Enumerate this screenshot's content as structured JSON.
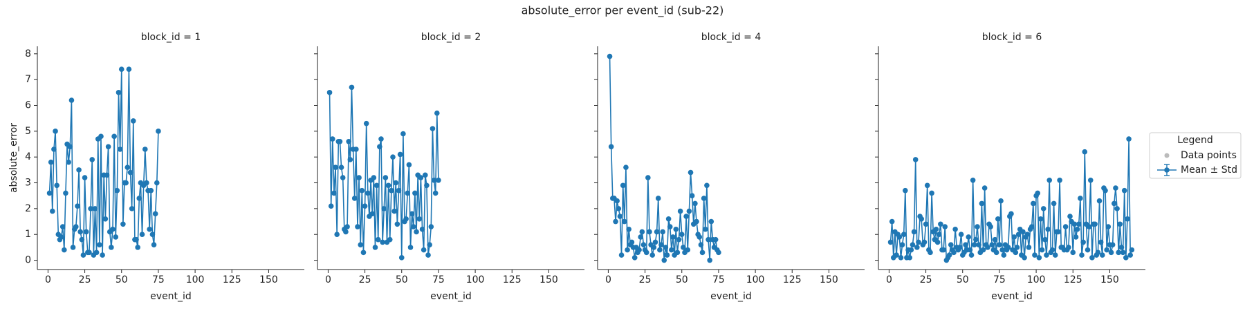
{
  "title": "absolute_error per event_id (sub-22)",
  "legend": {
    "title": "Legend",
    "position": "right",
    "entries": [
      {
        "name": "Data points",
        "color": "#bbbbbb",
        "marker": "dot"
      },
      {
        "name": "Mean ± Std",
        "color": "#1f77b4",
        "marker": "errorbar"
      }
    ]
  },
  "chart_data": [
    {
      "type": "line",
      "title": "block_id = 1",
      "x_label": "event_id",
      "y_label": "absolute_error",
      "xlim": [
        -7.25,
        174.25
      ],
      "ylim": [
        -0.36,
        8.29
      ],
      "xticks": [
        0,
        25,
        50,
        75,
        100,
        125,
        150
      ],
      "yticks": [
        0,
        1,
        2,
        3,
        4,
        5,
        6,
        7,
        8
      ],
      "x": [
        1,
        2,
        3,
        4,
        5,
        6,
        7,
        8,
        9,
        10,
        11,
        12,
        13,
        14,
        15,
        16,
        17,
        18,
        19,
        20,
        21,
        22,
        23,
        24,
        25,
        26,
        27,
        28,
        29,
        30,
        31,
        32,
        33,
        34,
        35,
        36,
        37,
        38,
        39,
        40,
        41,
        42,
        43,
        44,
        45,
        46,
        47,
        48,
        49,
        50,
        51,
        52,
        53,
        54,
        55,
        56,
        57,
        58,
        59,
        60,
        61,
        62,
        63,
        64,
        65,
        66,
        67,
        68,
        69,
        70,
        71,
        72,
        73,
        74,
        75
      ],
      "series": [
        {
          "color": "#1f77b4",
          "values": [
            2.6,
            3.8,
            1.9,
            4.3,
            5.0,
            2.9,
            1.0,
            0.8,
            0.9,
            1.3,
            0.4,
            2.6,
            4.5,
            3.8,
            4.4,
            6.2,
            0.5,
            1.2,
            1.3,
            2.1,
            3.5,
            1.1,
            0.8,
            0.2,
            3.2,
            1.1,
            0.3,
            0.3,
            2.0,
            3.9,
            0.2,
            2.0,
            0.3,
            4.7,
            0.6,
            4.8,
            0.2,
            3.3,
            1.6,
            3.3,
            4.4,
            1.1,
            0.5,
            1.2,
            4.8,
            0.9,
            2.7,
            6.5,
            4.3,
            7.4,
            1.4,
            3.0,
            3.0,
            3.6,
            7.4,
            3.4,
            2.0,
            5.4,
            0.8,
            0.8,
            0.5,
            2.4,
            3.0,
            1.0,
            2.9,
            4.3,
            3.0,
            2.7,
            1.2,
            2.7,
            1.0,
            0.6,
            1.8,
            3.0,
            5.0
          ]
        }
      ]
    },
    {
      "type": "line",
      "title": "block_id = 2",
      "x_label": "event_id",
      "xlim": [
        -7.25,
        174.25
      ],
      "ylim": [
        -0.36,
        8.29
      ],
      "xticks": [
        0,
        25,
        50,
        75,
        100,
        125,
        150
      ],
      "yticks": [
        0,
        1,
        2,
        3,
        4,
        5,
        6,
        7,
        8
      ],
      "x": [
        1,
        2,
        3,
        4,
        5,
        6,
        7,
        8,
        9,
        10,
        11,
        12,
        13,
        14,
        15,
        16,
        17,
        18,
        19,
        20,
        21,
        22,
        23,
        24,
        25,
        26,
        27,
        28,
        29,
        30,
        31,
        32,
        33,
        34,
        35,
        36,
        37,
        38,
        39,
        40,
        41,
        42,
        43,
        44,
        45,
        46,
        47,
        48,
        49,
        50,
        51,
        52,
        53,
        54,
        55,
        56,
        57,
        58,
        59,
        60,
        61,
        62,
        63,
        64,
        65,
        66,
        67,
        68,
        69,
        70,
        71,
        72,
        73,
        74,
        75
      ],
      "series": [
        {
          "color": "#1f77b4",
          "values": [
            6.5,
            2.1,
            4.7,
            2.6,
            3.6,
            1.0,
            4.6,
            4.6,
            3.6,
            3.2,
            1.2,
            1.1,
            1.3,
            4.6,
            3.9,
            6.7,
            4.3,
            2.4,
            4.3,
            1.3,
            3.2,
            0.6,
            2.7,
            0.3,
            2.1,
            5.3,
            2.6,
            1.7,
            3.1,
            1.8,
            3.2,
            0.5,
            2.9,
            0.8,
            4.4,
            4.7,
            0.7,
            2.0,
            3.2,
            0.7,
            2.9,
            0.8,
            2.7,
            4.0,
            1.9,
            3.0,
            1.4,
            2.7,
            4.1,
            0.1,
            4.9,
            1.5,
            1.6,
            2.6,
            3.7,
            0.5,
            1.8,
            1.3,
            2.6,
            1.1,
            3.3,
            1.6,
            3.2,
            1.2,
            0.4,
            3.3,
            2.9,
            0.2,
            0.6,
            1.3,
            5.1,
            3.1,
            2.6,
            5.7,
            3.1
          ]
        }
      ]
    },
    {
      "type": "line",
      "title": "block_id = 4",
      "x_label": "event_id",
      "xlim": [
        -7.25,
        174.25
      ],
      "ylim": [
        -0.36,
        8.29
      ],
      "xticks": [
        0,
        25,
        50,
        75,
        100,
        125,
        150
      ],
      "yticks": [
        0,
        1,
        2,
        3,
        4,
        5,
        6,
        7,
        8
      ],
      "x": [
        1,
        2,
        3,
        4,
        5,
        6,
        7,
        8,
        9,
        10,
        11,
        12,
        13,
        14,
        15,
        16,
        17,
        18,
        19,
        20,
        21,
        22,
        23,
        24,
        25,
        26,
        27,
        28,
        29,
        30,
        31,
        32,
        33,
        34,
        35,
        36,
        37,
        38,
        39,
        40,
        41,
        42,
        43,
        44,
        45,
        46,
        47,
        48,
        49,
        50,
        51,
        52,
        53,
        54,
        55,
        56,
        57,
        58,
        59,
        60,
        61,
        62,
        63,
        64,
        65,
        66,
        67,
        68,
        69,
        70,
        71,
        72,
        73,
        74,
        75
      ],
      "series": [
        {
          "color": "#1f77b4",
          "values": [
            7.9,
            4.4,
            2.4,
            2.4,
            1.5,
            2.3,
            2.0,
            1.7,
            0.2,
            2.9,
            1.5,
            3.6,
            0.4,
            1.2,
            0.6,
            0.7,
            0.5,
            0.1,
            0.5,
            0.3,
            0.4,
            0.9,
            1.1,
            0.6,
            0.4,
            0.3,
            3.2,
            1.1,
            0.6,
            0.2,
            0.5,
            0.7,
            1.1,
            2.4,
            0.4,
            0.6,
            1.1,
            0.0,
            0.5,
            0.2,
            1.6,
            1.3,
            0.4,
            0.9,
            0.2,
            1.2,
            0.3,
            0.8,
            1.9,
            1.0,
            0.5,
            0.3,
            1.7,
            0.4,
            1.9,
            3.4,
            2.5,
            1.4,
            2.2,
            1.5,
            1.0,
            0.9,
            0.6,
            0.3,
            2.4,
            1.2,
            2.9,
            0.8,
            0.0,
            1.5,
            0.8,
            0.5,
            0.8,
            0.4,
            0.3
          ]
        }
      ]
    },
    {
      "type": "line",
      "title": "block_id = 6",
      "x_label": "event_id",
      "xlim": [
        -7.25,
        174.25
      ],
      "ylim": [
        -0.36,
        8.29
      ],
      "xticks": [
        0,
        25,
        50,
        75,
        100,
        125,
        150
      ],
      "yticks": [
        0,
        1,
        2,
        3,
        4,
        5,
        6,
        7,
        8
      ],
      "x": [
        1,
        2,
        3,
        4,
        5,
        6,
        7,
        8,
        9,
        10,
        11,
        12,
        13,
        14,
        15,
        16,
        17,
        18,
        19,
        20,
        21,
        22,
        23,
        24,
        25,
        26,
        27,
        28,
        29,
        30,
        31,
        32,
        33,
        34,
        35,
        36,
        37,
        38,
        39,
        40,
        41,
        42,
        43,
        44,
        45,
        46,
        47,
        48,
        49,
        50,
        51,
        52,
        53,
        54,
        55,
        56,
        57,
        58,
        59,
        60,
        61,
        62,
        63,
        64,
        65,
        66,
        67,
        68,
        69,
        70,
        71,
        72,
        73,
        74,
        75,
        76,
        77,
        78,
        79,
        80,
        81,
        82,
        83,
        84,
        85,
        86,
        87,
        88,
        89,
        90,
        91,
        92,
        93,
        94,
        95,
        96,
        97,
        98,
        99,
        100,
        101,
        102,
        103,
        104,
        105,
        106,
        107,
        108,
        109,
        110,
        111,
        112,
        113,
        114,
        115,
        116,
        117,
        118,
        119,
        120,
        121,
        122,
        123,
        124,
        125,
        126,
        127,
        128,
        129,
        130,
        131,
        132,
        133,
        134,
        135,
        136,
        137,
        138,
        139,
        140,
        141,
        142,
        143,
        144,
        145,
        146,
        147,
        148,
        149,
        150,
        151,
        152,
        153,
        154,
        155,
        156,
        157,
        158,
        159,
        160,
        161,
        162,
        163,
        164,
        165
      ],
      "series": [
        {
          "color": "#1f77b4",
          "values": [
            0.7,
            1.5,
            0.1,
            1.1,
            0.2,
            1.0,
            0.9,
            0.1,
            0.6,
            1.0,
            2.7,
            0.1,
            0.4,
            0.1,
            0.4,
            0.6,
            1.1,
            3.9,
            0.5,
            0.7,
            1.7,
            1.6,
            0.6,
            0.7,
            1.4,
            2.9,
            0.4,
            0.3,
            2.6,
            1.1,
            0.8,
            1.2,
            0.7,
            1.0,
            1.4,
            0.4,
            0.4,
            1.3,
            0.0,
            0.1,
            0.2,
            0.6,
            0.4,
            0.3,
            1.2,
            0.5,
            0.4,
            0.5,
            1.0,
            0.2,
            0.3,
            0.6,
            0.4,
            0.9,
            0.4,
            0.2,
            3.1,
            0.6,
            0.8,
            1.3,
            0.6,
            0.3,
            2.2,
            0.4,
            2.8,
            0.6,
            0.5,
            1.4,
            1.3,
            0.6,
            0.4,
            0.8,
            0.3,
            1.6,
            0.6,
            2.3,
            0.4,
            0.2,
            0.6,
            0.4,
            0.5,
            1.7,
            1.8,
            0.4,
            0.9,
            0.3,
            0.5,
            1.0,
            1.2,
            0.2,
            1.1,
            0.1,
            0.9,
            1.0,
            0.5,
            1.2,
            1.3,
            2.2,
            0.2,
            2.5,
            2.6,
            0.1,
            1.6,
            0.4,
            2.0,
            0.8,
            0.2,
            1.2,
            3.1,
            0.3,
            0.4,
            2.2,
            0.2,
            1.1,
            1.1,
            3.1,
            0.5,
            0.5,
            0.4,
            1.3,
            0.4,
            0.5,
            1.7,
            1.5,
            0.3,
            1.4,
            0.9,
            1.2,
            1.4,
            2.4,
            0.2,
            0.7,
            4.2,
            1.4,
            0.4,
            1.3,
            3.1,
            0.1,
            1.4,
            1.4,
            0.2,
            0.3,
            2.3,
            0.7,
            0.2,
            2.8,
            2.7,
            0.4,
            1.3,
            0.6,
            0.3,
            0.6,
            2.2,
            2.8,
            2.0,
            0.3,
            1.4,
            0.5,
            0.3,
            2.7,
            0.1,
            1.6,
            4.7,
            0.2,
            0.4
          ]
        }
      ]
    }
  ]
}
